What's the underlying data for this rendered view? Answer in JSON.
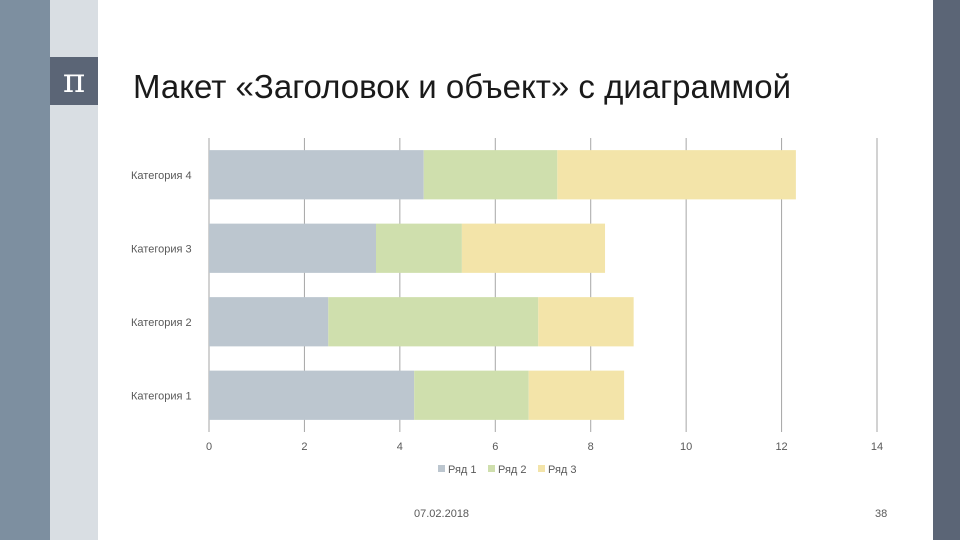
{
  "slide": {
    "title": "Макет «Заголовок и объект» с диаграммой",
    "logo_symbol": "π",
    "date": "07.02.2018",
    "page_number": "38"
  },
  "colors": {
    "left_bar": "#7d8fa0",
    "left_panel": "#d9dee3",
    "accent": "#5b6576",
    "series": [
      "#bcc6cf",
      "#cfdfad",
      "#f3e4a9"
    ],
    "grid": "#a6a6a6"
  },
  "chart_data": {
    "type": "bar",
    "orientation": "horizontal",
    "stacked": true,
    "categories": [
      "Категория 1",
      "Категория 2",
      "Категория 3",
      "Категория 4"
    ],
    "series": [
      {
        "name": "Ряд 1",
        "values": [
          4.3,
          2.5,
          3.5,
          4.5
        ]
      },
      {
        "name": "Ряд 2",
        "values": [
          2.4,
          4.4,
          1.8,
          2.8
        ]
      },
      {
        "name": "Ряд 3",
        "values": [
          2.0,
          2.0,
          3.0,
          5.0
        ]
      }
    ],
    "xlim": [
      0,
      14
    ],
    "xticks": [
      0,
      2,
      4,
      6,
      8,
      10,
      12,
      14
    ],
    "grid": "vertical",
    "legend": "bottom",
    "title": "",
    "xlabel": "",
    "ylabel": ""
  }
}
